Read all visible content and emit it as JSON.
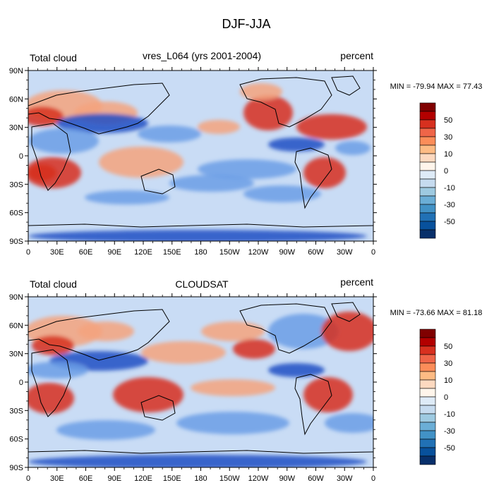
{
  "figure": {
    "title": "DJF-JJA"
  },
  "axes": {
    "lat_labels": [
      "90N",
      "60N",
      "30N",
      "0",
      "30S",
      "60S",
      "90S"
    ],
    "lon_labels": [
      "0",
      "30E",
      "60E",
      "90E",
      "120E",
      "150E",
      "180",
      "150W",
      "120W",
      "90W",
      "60W",
      "30W",
      "0"
    ]
  },
  "panels": [
    {
      "left_title": "Total cloud",
      "center_title": "vres_L064 (yrs 2001-2004)",
      "right_title": "percent",
      "stats": "MIN = -79.94 MAX =  77.43"
    },
    {
      "left_title": "Total cloud",
      "center_title": "CLOUDSAT",
      "right_title": "percent",
      "stats": "MIN = -73.66 MAX =  81.18"
    }
  ],
  "colorbar": {
    "labels": [
      "50",
      "30",
      "10",
      "0",
      "-10",
      "-30",
      "-50"
    ],
    "colors": [
      "#800000",
      "#b30000",
      "#d7301f",
      "#ef6548",
      "#fc8d59",
      "#fdbb84",
      "#fdd9c0",
      "#fff5eb",
      "#deebf7",
      "#c6dbef",
      "#9ecae1",
      "#6baed6",
      "#4292c6",
      "#2171b5",
      "#08519c",
      "#08306b"
    ]
  },
  "palette": {
    "ocean_base": "#c9dcf5",
    "warm": "#f4a37e",
    "warm_strong": "#d7301f",
    "cool": "#6b9ee6",
    "cool_strong": "#1f4fc4"
  }
}
